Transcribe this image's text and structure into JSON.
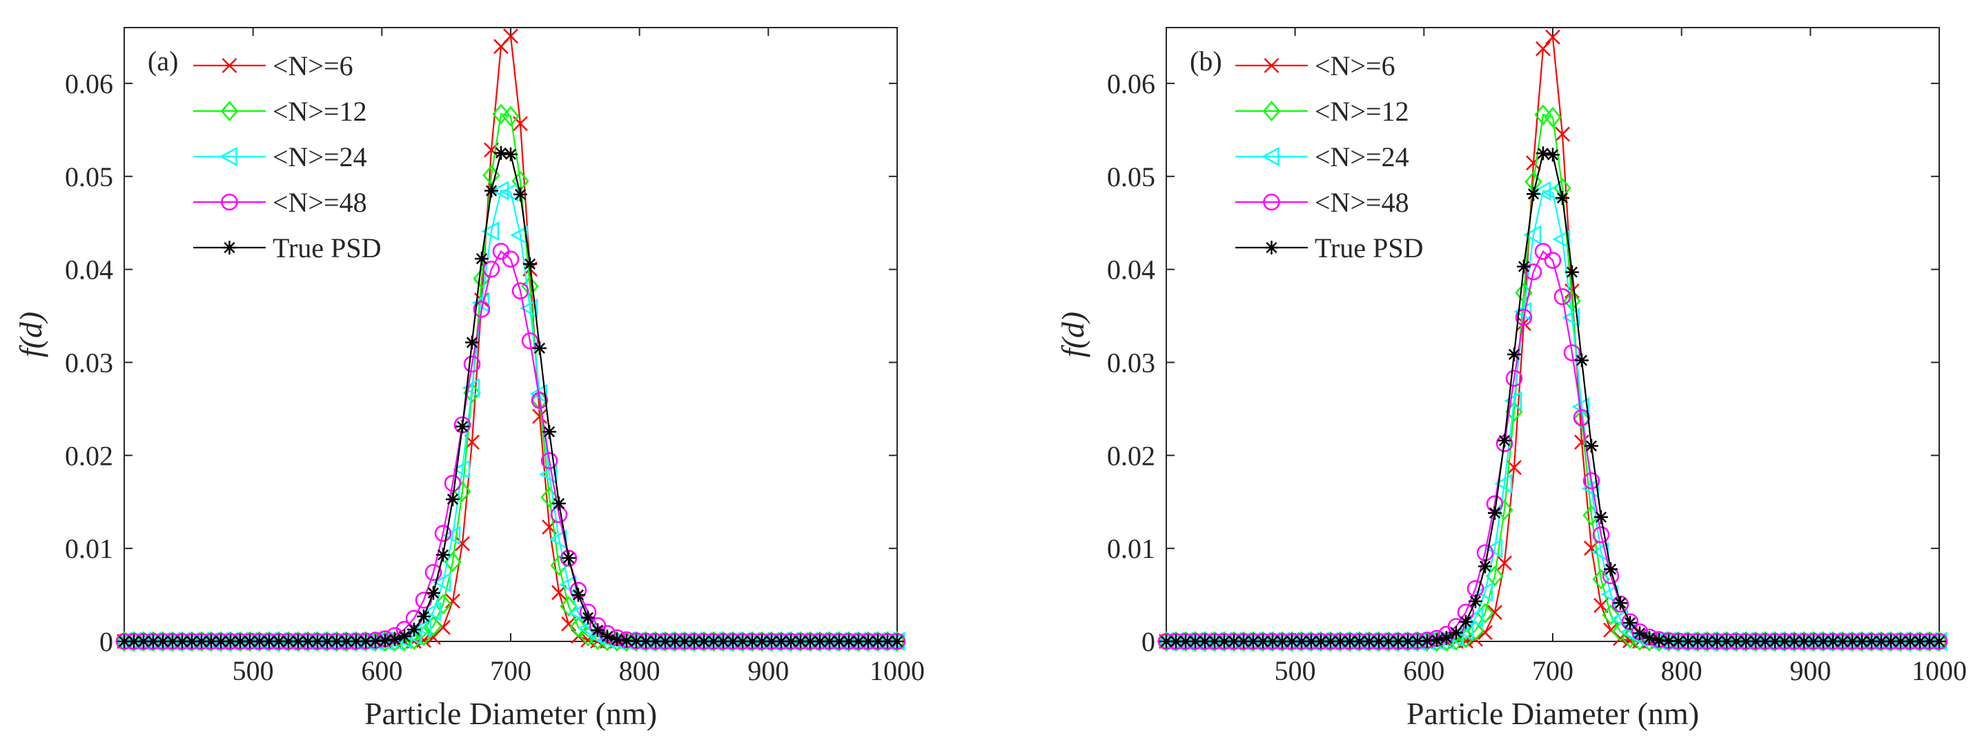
{
  "figure": {
    "panels_description": "two side-by-side line plots"
  },
  "chart_data": [
    {
      "type": "line",
      "panel_label": "(a)",
      "xlabel": "Particle Diameter (nm)",
      "ylabel": "f(d)",
      "xlim": [
        400,
        1000
      ],
      "ylim": [
        0,
        0.066
      ],
      "xticks": [
        500,
        600,
        700,
        800,
        900,
        1000
      ],
      "xtick_labels": [
        "500",
        "600",
        "700",
        "800",
        "900",
        "1000"
      ],
      "yticks": [
        0,
        0.01,
        0.02,
        0.03,
        0.04,
        0.05,
        0.06
      ],
      "ytick_labels": [
        "0",
        "0.01",
        "0.02",
        "0.03",
        "0.04",
        "0.05",
        "0.06"
      ],
      "x": {
        "start": 400,
        "stop": 1000,
        "step": 7.5
      },
      "legend_position": "top-left",
      "series": [
        {
          "name": "<N>=6",
          "color": "#ff0000",
          "marker": "x",
          "model": "gaussian",
          "peak": 0.066,
          "center": 697,
          "sigma": 18
        },
        {
          "name": "<N>=12",
          "color": "#00ff00",
          "marker": "diamond",
          "model": "gaussian",
          "peak": 0.0575,
          "center": 696,
          "sigma": 21
        },
        {
          "name": "<N>=24",
          "color": "#00ffff",
          "marker": "triangle-left",
          "model": "gaussian",
          "peak": 0.049,
          "center": 696,
          "sigma": 24
        },
        {
          "name": "<N>=48",
          "color": "#ff00ff",
          "marker": "circle",
          "model": "gaussian",
          "peak": 0.042,
          "center": 694,
          "sigma": 29
        },
        {
          "name": "True PSD",
          "color": "#000000",
          "marker": "asterisk",
          "model": "gaussian",
          "peak": 0.053,
          "center": 696,
          "sigma": 26
        }
      ]
    },
    {
      "type": "line",
      "panel_label": "(b)",
      "xlabel": "Particle Diameter (nm)",
      "ylabel": "f(d)",
      "xlim": [
        400,
        1000
      ],
      "ylim": [
        0,
        0.066
      ],
      "xticks": [
        500,
        600,
        700,
        800,
        900,
        1000
      ],
      "xtick_labels": [
        "500",
        "600",
        "700",
        "800",
        "900",
        "1000"
      ],
      "yticks": [
        0,
        0.01,
        0.02,
        0.03,
        0.04,
        0.05,
        0.06
      ],
      "ytick_labels": [
        "0",
        "0.01",
        "0.02",
        "0.03",
        "0.04",
        "0.05",
        "0.06"
      ],
      "x": {
        "start": 400,
        "stop": 1000,
        "step": 7.5
      },
      "legend_position": "top-left",
      "series": [
        {
          "name": "<N>=6",
          "color": "#ff0000",
          "marker": "x",
          "model": "gaussian",
          "peak": 0.066,
          "center": 697,
          "sigma": 17
        },
        {
          "name": "<N>=12",
          "color": "#00ff00",
          "marker": "diamond",
          "model": "gaussian",
          "peak": 0.0575,
          "center": 696,
          "sigma": 20
        },
        {
          "name": "<N>=24",
          "color": "#00ffff",
          "marker": "triangle-left",
          "model": "gaussian",
          "peak": 0.049,
          "center": 696,
          "sigma": 23
        },
        {
          "name": "<N>=48",
          "color": "#ff00ff",
          "marker": "circle",
          "model": "gaussian",
          "peak": 0.042,
          "center": 694,
          "sigma": 27
        },
        {
          "name": "True PSD",
          "color": "#000000",
          "marker": "asterisk",
          "model": "gaussian",
          "peak": 0.053,
          "center": 696,
          "sigma": 25
        }
      ]
    }
  ]
}
